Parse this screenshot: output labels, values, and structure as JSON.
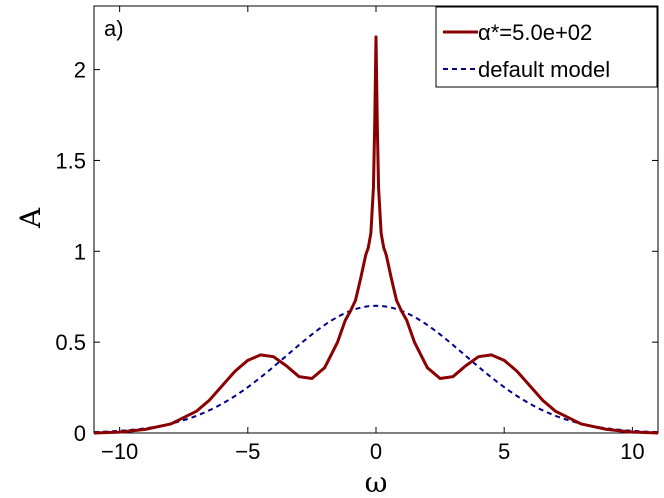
{
  "chart_data": {
    "type": "line",
    "panel_label": "a)",
    "xlabel": "ω",
    "ylabel": "A",
    "xlim": [
      -11,
      11
    ],
    "ylim": [
      0,
      2.35
    ],
    "x_ticks": [
      -10,
      -5,
      0,
      5,
      10
    ],
    "x_tick_labels": [
      "−10",
      "−5",
      "0",
      "5",
      "10"
    ],
    "y_ticks": [
      0,
      0.5,
      1,
      1.5,
      2
    ],
    "y_tick_labels": [
      "0",
      "0.5",
      "1",
      "1.5",
      "2"
    ],
    "grid": false,
    "legend_position": "top-right",
    "series": [
      {
        "name": "α*=5.0e+02",
        "color": "#8b0000",
        "style": "solid",
        "x": [
          -11,
          -10,
          -9,
          -8,
          -7,
          -6.5,
          -6,
          -5.5,
          -5,
          -4.5,
          -4,
          -3.5,
          -3,
          -2.5,
          -2,
          -1.5,
          -1.2,
          -1,
          -0.8,
          -0.6,
          -0.4,
          -0.3,
          -0.2,
          -0.1,
          -0.05,
          0,
          0.05,
          0.1,
          0.2,
          0.3,
          0.4,
          0.6,
          0.8,
          1,
          1.2,
          1.5,
          2,
          2.5,
          3,
          3.5,
          4,
          4.5,
          5,
          5.5,
          6,
          6.5,
          7,
          8,
          9,
          10,
          11
        ],
        "y": [
          0.0,
          0.005,
          0.02,
          0.05,
          0.12,
          0.18,
          0.26,
          0.34,
          0.4,
          0.43,
          0.42,
          0.37,
          0.31,
          0.3,
          0.36,
          0.5,
          0.62,
          0.67,
          0.73,
          0.85,
          0.98,
          1.02,
          1.1,
          1.35,
          1.7,
          2.18,
          1.7,
          1.35,
          1.1,
          1.02,
          0.98,
          0.85,
          0.73,
          0.67,
          0.62,
          0.5,
          0.36,
          0.3,
          0.31,
          0.37,
          0.42,
          0.43,
          0.4,
          0.34,
          0.26,
          0.18,
          0.12,
          0.05,
          0.02,
          0.005,
          0.0
        ]
      },
      {
        "name": "default model",
        "color": "#00008b",
        "style": "dashed",
        "gaussian": {
          "amplitude": 0.7,
          "sigma": 3.5
        }
      }
    ]
  }
}
